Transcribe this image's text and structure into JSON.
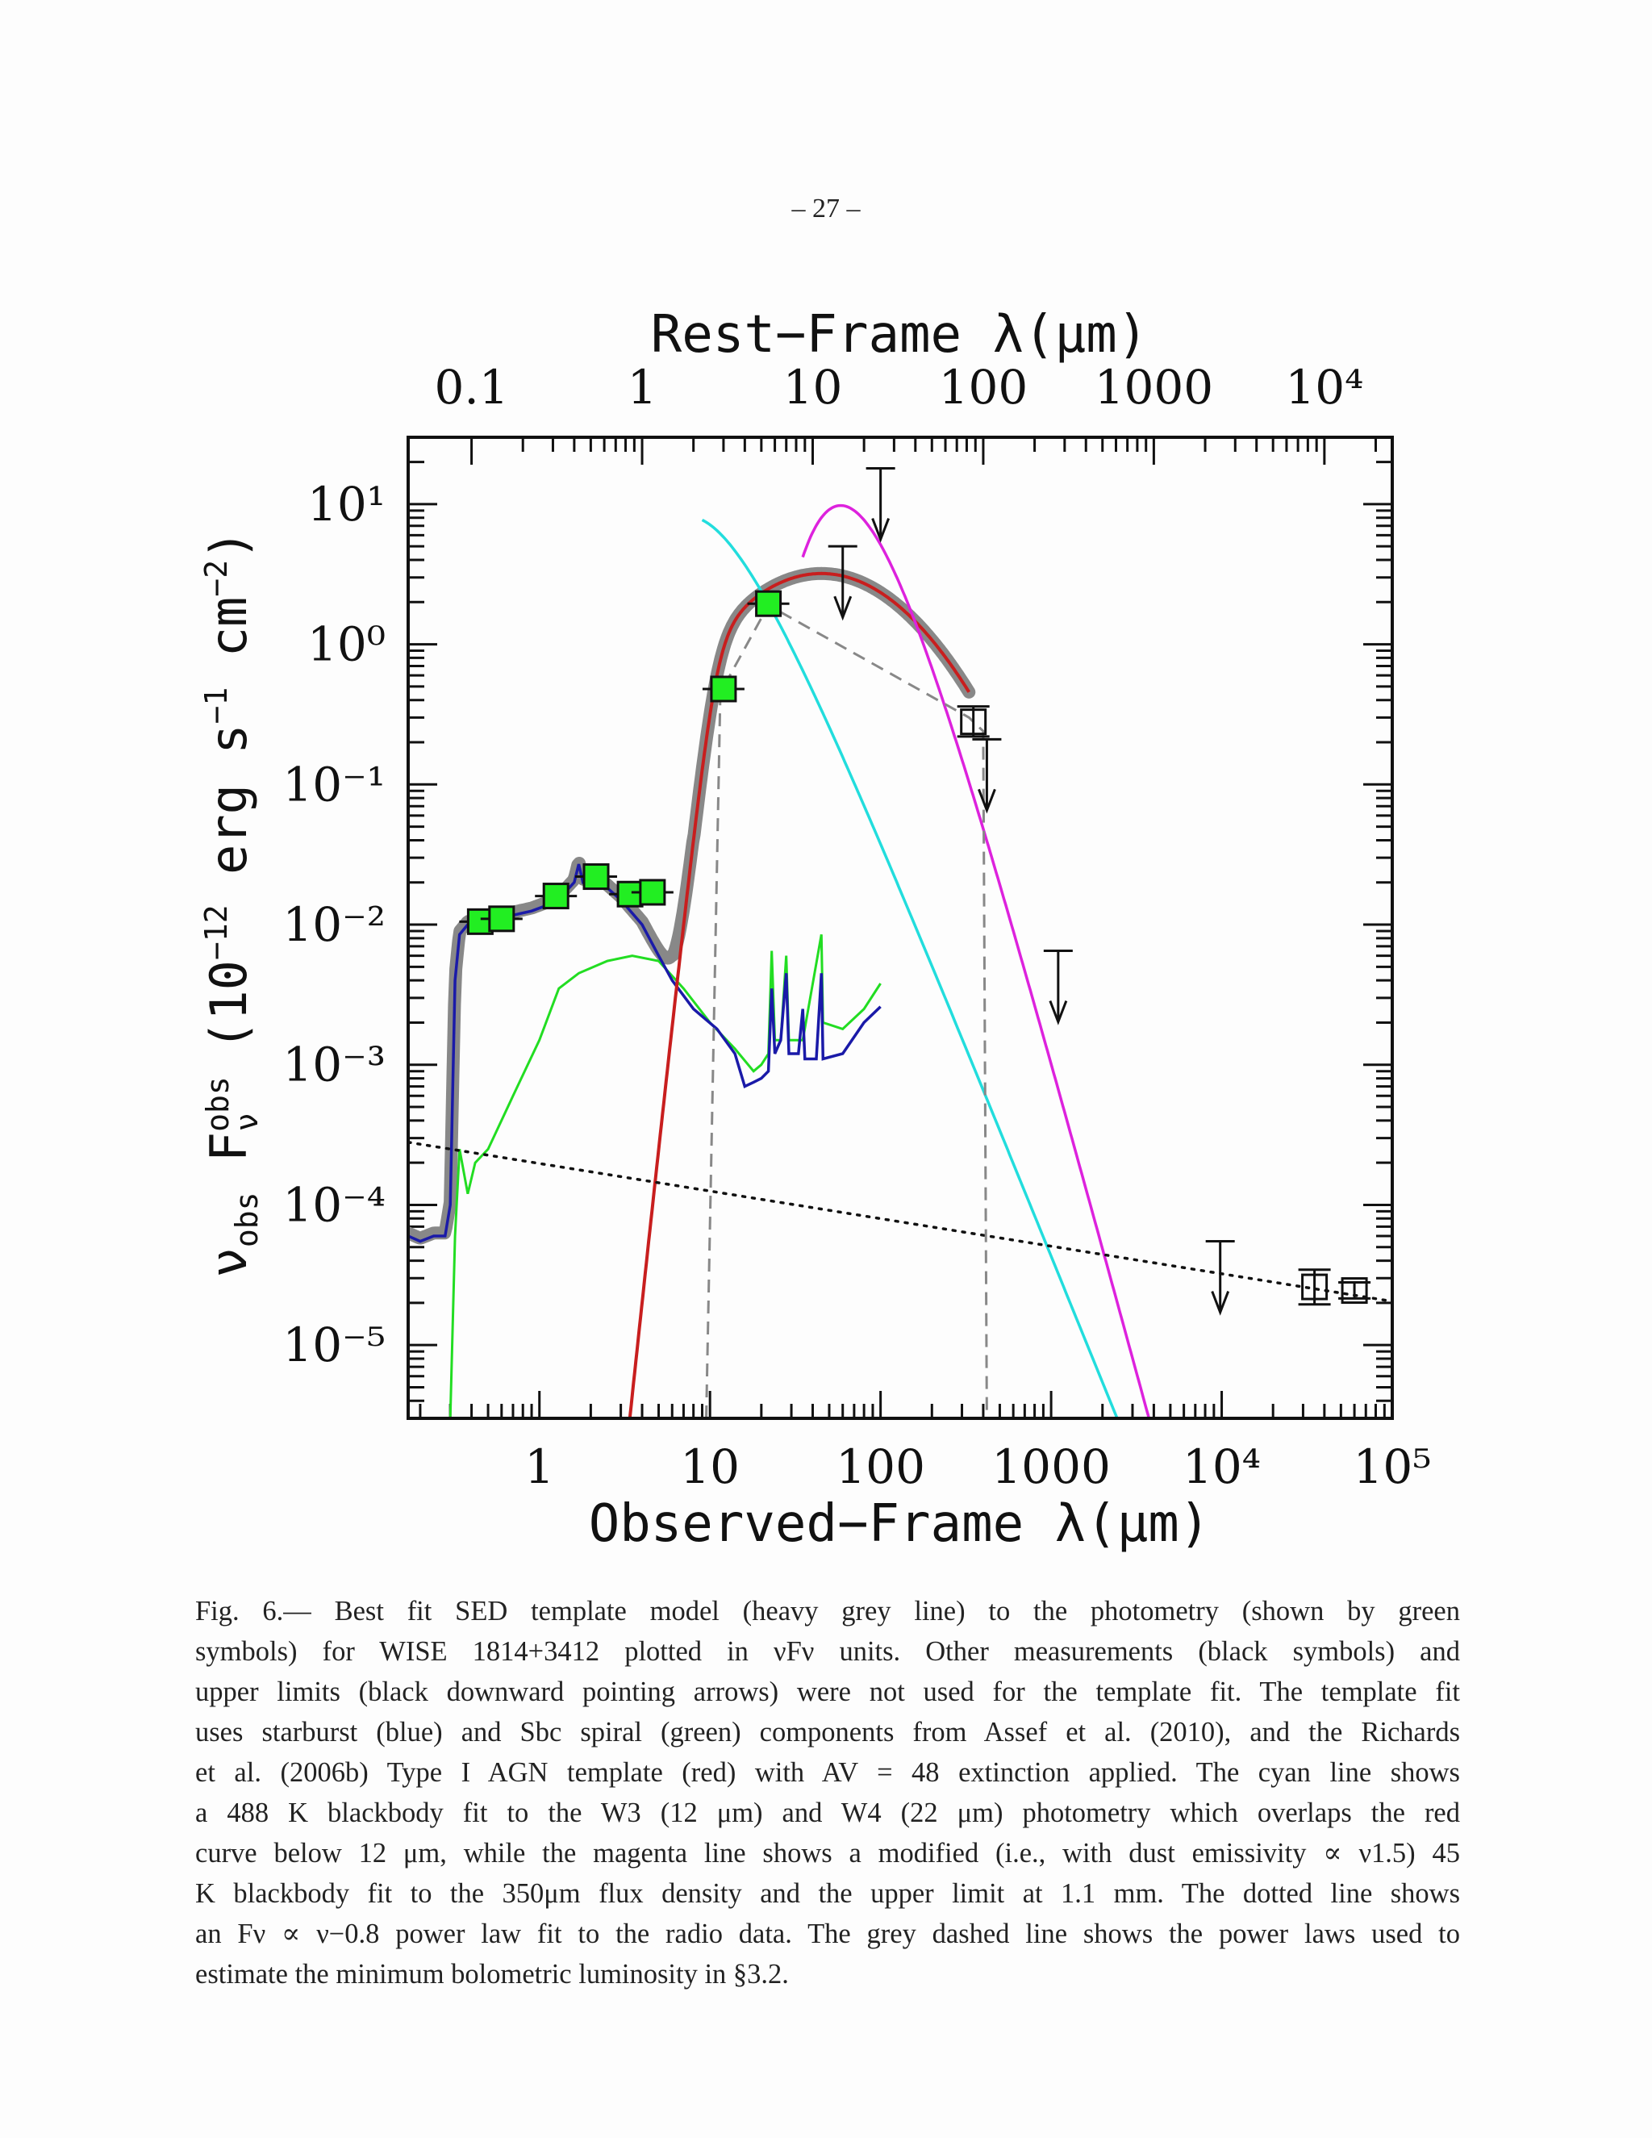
{
  "page_number": "– 27 –",
  "figure": {
    "top_axis_label": "Rest−Frame λ(μm)",
    "bottom_axis_label": "Observed−Frame λ(μm)",
    "y_axis_label": "νobs Fνobs (10⁻¹² erg s⁻¹ cm⁻²)",
    "top_ticks": [
      "0.1",
      "1",
      "10",
      "100",
      "1000",
      "10⁴"
    ],
    "bottom_ticks": [
      "1",
      "10",
      "100",
      "1000",
      "10⁴",
      "10⁵"
    ],
    "y_ticks": [
      "10¹",
      "10⁰",
      "10⁻¹",
      "10⁻²",
      "10⁻³",
      "10⁻⁴",
      "10⁻⁵"
    ]
  },
  "chart_data": {
    "type": "scatter",
    "x_scale": "log",
    "y_scale": "log",
    "xlim": [
      0.17,
      100000
    ],
    "ylim": [
      3e-06,
      30
    ],
    "redshift_for_top_axis": 3.0,
    "colors": {
      "template": "#888888",
      "starburst": "#1a1aa8",
      "sbc": "#22dd22",
      "agn": "#c81e1e",
      "bb488": "#22dddd",
      "bb45": "#dd22dd",
      "phot": "#22ee22"
    },
    "photometry_used": [
      {
        "x": 0.45,
        "y": 0.0105
      },
      {
        "x": 0.6,
        "y": 0.011
      },
      {
        "x": 1.25,
        "y": 0.016
      },
      {
        "x": 2.15,
        "y": 0.022
      },
      {
        "x": 3.4,
        "y": 0.0165
      },
      {
        "x": 4.6,
        "y": 0.017
      },
      {
        "x": 12.0,
        "y": 0.48
      },
      {
        "x": 22.0,
        "y": 1.95
      }
    ],
    "other_measurements": [
      {
        "x": 350,
        "y": 0.28,
        "ylo": 0.22,
        "yhi": 0.36
      },
      {
        "x": 35000,
        "y": 2.6e-05,
        "ylo": 1.95e-05,
        "yhi": 3.45e-05
      },
      {
        "x": 60000,
        "y": 2.45e-05,
        "ylo": 2.15e-05,
        "yhi": 2.8e-05
      }
    ],
    "upper_limits": [
      {
        "x": 60,
        "y": 5.0
      },
      {
        "x": 100,
        "y": 18.0
      },
      {
        "x": 420,
        "y": 0.21
      },
      {
        "x": 1100,
        "y": 0.0065
      },
      {
        "x": 9800,
        "y": 5.5e-05
      }
    ],
    "power_law_radio": {
      "x": [
        0.17,
        100000
      ],
      "y": [
        0.00028,
        2.05e-05
      ]
    },
    "dashed_bolometric": {
      "x": [
        9.5,
        11.5,
        22,
        330,
        400,
        420
      ],
      "y": [
        3e-06,
        0.45,
        1.9,
        0.3,
        0.24,
        3e-06
      ]
    }
  },
  "caption": [
    "Fig.  6.— Best fit SED template model (heavy grey line) to the photometry (shown by green",
    "symbols) for WISE 1814+3412 plotted in νFν units.  Other measurements (black symbols) and",
    "upper limits (black downward pointing arrows) were not used for the template fit. The template fit",
    "uses starburst (blue) and Sbc spiral (green) components from Assef et al. (2010), and the Richards",
    "et al. (2006b) Type I AGN template (red) with AV = 48 extinction applied. The cyan line shows",
    "a 488 K blackbody fit to the W3 (12 μm) and W4 (22 μm) photometry which overlaps the red",
    "curve below 12 μm, while the magenta line shows a modified (i.e., with dust emissivity ∝ ν1.5) 45",
    "K blackbody fit to the 350μm flux density and the upper limit at 1.1 mm. The dotted line shows",
    "an Fν ∝ ν−0.8 power law fit to the radio data. The grey dashed line shows the power laws used to",
    "estimate the minimum bolometric luminosity in §3.2."
  ]
}
